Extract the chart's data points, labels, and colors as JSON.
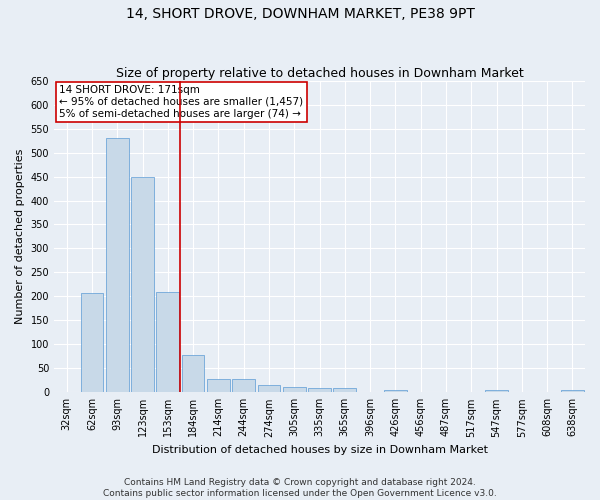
{
  "title": "14, SHORT DROVE, DOWNHAM MARKET, PE38 9PT",
  "subtitle": "Size of property relative to detached houses in Downham Market",
  "xlabel": "Distribution of detached houses by size in Downham Market",
  "ylabel": "Number of detached properties",
  "categories": [
    "32sqm",
    "62sqm",
    "93sqm",
    "123sqm",
    "153sqm",
    "184sqm",
    "214sqm",
    "244sqm",
    "274sqm",
    "305sqm",
    "335sqm",
    "365sqm",
    "396sqm",
    "426sqm",
    "456sqm",
    "487sqm",
    "517sqm",
    "547sqm",
    "577sqm",
    "608sqm",
    "638sqm"
  ],
  "values": [
    0,
    207,
    530,
    450,
    210,
    78,
    27,
    27,
    15,
    12,
    8,
    8,
    0,
    5,
    0,
    0,
    0,
    5,
    0,
    0,
    5
  ],
  "bar_color": "#c8d9e8",
  "bar_edge_color": "#5b9bd5",
  "marker_line_index": 5,
  "marker_line_color": "#cc0000",
  "ylim": [
    0,
    650
  ],
  "yticks": [
    0,
    50,
    100,
    150,
    200,
    250,
    300,
    350,
    400,
    450,
    500,
    550,
    600,
    650
  ],
  "annotation_line1": "14 SHORT DROVE: 171sqm",
  "annotation_line2": "← 95% of detached houses are smaller (1,457)",
  "annotation_line3": "5% of semi-detached houses are larger (74) →",
  "annotation_box_color": "#ffffff",
  "annotation_box_edge_color": "#cc0000",
  "footer_text": "Contains HM Land Registry data © Crown copyright and database right 2024.\nContains public sector information licensed under the Open Government Licence v3.0.",
  "bg_color": "#e8eef5",
  "grid_color": "#ffffff",
  "title_fontsize": 10,
  "subtitle_fontsize": 9,
  "annotation_fontsize": 7.5,
  "tick_fontsize": 7,
  "ylabel_fontsize": 8,
  "xlabel_fontsize": 8,
  "footer_fontsize": 6.5
}
